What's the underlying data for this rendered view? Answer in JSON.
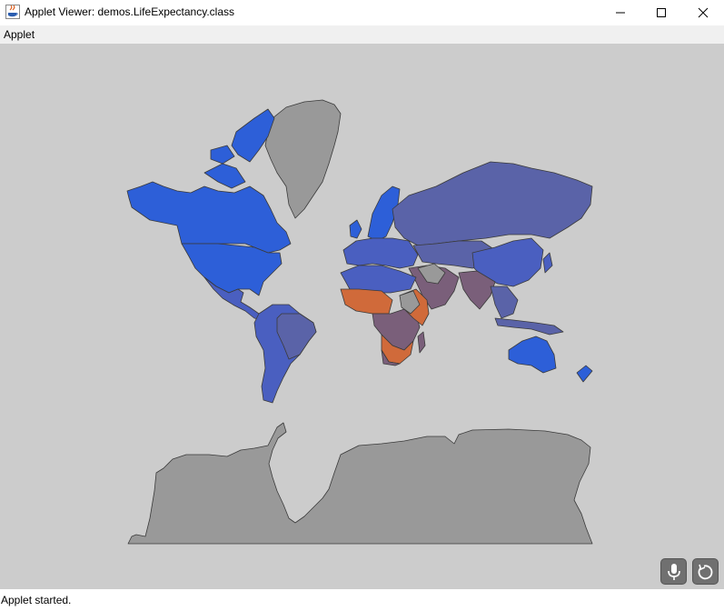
{
  "window": {
    "title": "Applet Viewer: demos.LifeExpectancy.class",
    "icon": "java-icon",
    "buttons": [
      "minimize",
      "maximize",
      "close"
    ]
  },
  "menu": {
    "items": [
      "Applet"
    ]
  },
  "applet": {
    "background": "#cccccc",
    "map_colors": {
      "no_data": "#999999",
      "high": "#2d5fd8",
      "upper_mid": "#4a5fc0",
      "mid": "#5a63a8",
      "lower_mid": "#7a5f7a",
      "low": "#d06a3a"
    },
    "controls": [
      "microphone-icon",
      "reset-icon"
    ]
  },
  "status": {
    "text": "Applet started."
  }
}
